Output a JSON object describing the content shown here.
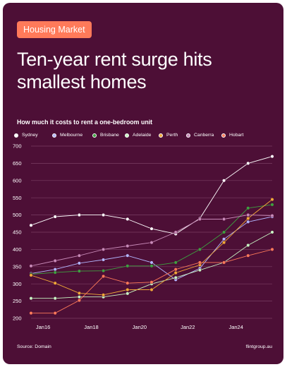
{
  "tag": "Housing Market",
  "title": "Ten-year rent surge hits smallest homes",
  "subtitle": "How much it costs to rent a one-bedroom unit",
  "source": "Source: Domain",
  "brand": "flintgroup.au",
  "colors": {
    "background": "#4d0f36",
    "tag": "#ff7a5a",
    "grid": "#7a3f63"
  },
  "chart_data": {
    "type": "line",
    "x": [
      2015.5,
      2016,
      2016.5,
      2017,
      2017.5,
      2018,
      2018.5,
      2019,
      2019.5,
      2020,
      2020.5,
      2021,
      2021.5,
      2022,
      2022.5,
      2023,
      2023.5,
      2024,
      2024.5,
      2025,
      2025.5
    ],
    "x_tick_values": [
      2016,
      2018,
      2020,
      2022,
      2024
    ],
    "x_tick_labels": [
      "Jan16",
      "Jan18",
      "Jan20",
      "Jan22",
      "Jan24"
    ],
    "y_ticks": [
      200,
      250,
      300,
      350,
      400,
      450,
      500,
      550,
      600,
      650,
      700
    ],
    "ylim": [
      200,
      700
    ],
    "grid": "horizontal",
    "legend_position": "top",
    "series": [
      {
        "name": "Sydney",
        "color": "#ffffff",
        "x": [
          2015.5,
          2016.5,
          2017.5,
          2018.5,
          2019.5,
          2020.5,
          2021.5,
          2022.5,
          2023.5,
          2024.5,
          2025.5
        ],
        "values": [
          470,
          495,
          500,
          500,
          488,
          460,
          445,
          490,
          600,
          650,
          670
        ]
      },
      {
        "name": "Melbourne",
        "color": "#b3b6ff",
        "x": [
          2015.5,
          2016.5,
          2017.5,
          2018.5,
          2019.5,
          2020.5,
          2021.5,
          2022.5,
          2023.5,
          2024.5,
          2025.5
        ],
        "values": [
          330,
          342,
          360,
          370,
          382,
          362,
          312,
          345,
          430,
          480,
          495
        ]
      },
      {
        "name": "Brisbane",
        "color": "#3ea040",
        "x": [
          2015.5,
          2016.5,
          2017.5,
          2018.5,
          2019.5,
          2020.5,
          2021.5,
          2022.5,
          2023.5,
          2024.5,
          2025.5
        ],
        "values": [
          328,
          333,
          337,
          338,
          352,
          352,
          362,
          400,
          450,
          520,
          530
        ]
      },
      {
        "name": "Adelaide",
        "color": "#c8f5c3",
        "x": [
          2015.5,
          2016.5,
          2017.5,
          2018.5,
          2019.5,
          2020.5,
          2021.5,
          2022.5,
          2023.5,
          2024.5,
          2025.5
        ],
        "values": [
          258,
          258,
          262,
          262,
          272,
          300,
          318,
          340,
          362,
          412,
          450
        ]
      },
      {
        "name": "Perth",
        "color": "#f0a838",
        "x": [
          2015.5,
          2016.5,
          2017.5,
          2018.5,
          2019.5,
          2020.5,
          2021.5,
          2022.5,
          2023.5,
          2024.5,
          2025.5
        ],
        "values": [
          325,
          302,
          273,
          268,
          283,
          283,
          332,
          355,
          420,
          490,
          545
        ]
      },
      {
        "name": "Canberra",
        "color": "#c88ab8",
        "x": [
          2015.5,
          2016.5,
          2017.5,
          2018.5,
          2019.5,
          2020.5,
          2021.5,
          2022.5,
          2023.5,
          2024.5,
          2025.5
        ],
        "values": [
          352,
          367,
          382,
          400,
          410,
          420,
          450,
          488,
          488,
          500,
          498
        ]
      },
      {
        "name": "Hobart",
        "color": "#ff7a5a",
        "x": [
          2015.5,
          2016.5,
          2017.5,
          2018.5,
          2019.5,
          2020.5,
          2021.5,
          2022.5,
          2023.5,
          2024.5,
          2025.5
        ],
        "values": [
          215,
          215,
          252,
          322,
          302,
          305,
          342,
          362,
          362,
          382,
          400
        ]
      }
    ]
  }
}
